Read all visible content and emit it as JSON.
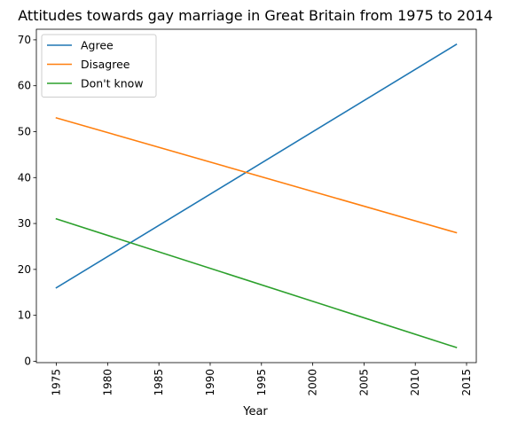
{
  "chart_data": {
    "type": "line",
    "title": "Attitudes towards gay marriage in Great Britain from 1975 to 2014",
    "xlabel": "Year",
    "ylabel": "",
    "xlim": [
      1973.05,
      2015.95
    ],
    "ylim": [
      -0.3,
      72.3
    ],
    "x_ticks": [
      1975,
      1980,
      1985,
      1990,
      1995,
      2000,
      2005,
      2010,
      2015
    ],
    "y_ticks": [
      0,
      10,
      20,
      30,
      40,
      50,
      60,
      70
    ],
    "grid": false,
    "legend_position": "top-left",
    "series": [
      {
        "name": "Agree",
        "color": "#1f77b4",
        "x": [
          1975,
          2014
        ],
        "y": [
          16,
          69
        ]
      },
      {
        "name": "Disagree",
        "color": "#ff7f0e",
        "x": [
          1975,
          2014
        ],
        "y": [
          53,
          28
        ]
      },
      {
        "name": "Don't know",
        "color": "#2ca02c",
        "x": [
          1975,
          2014
        ],
        "y": [
          31,
          3
        ]
      }
    ]
  }
}
